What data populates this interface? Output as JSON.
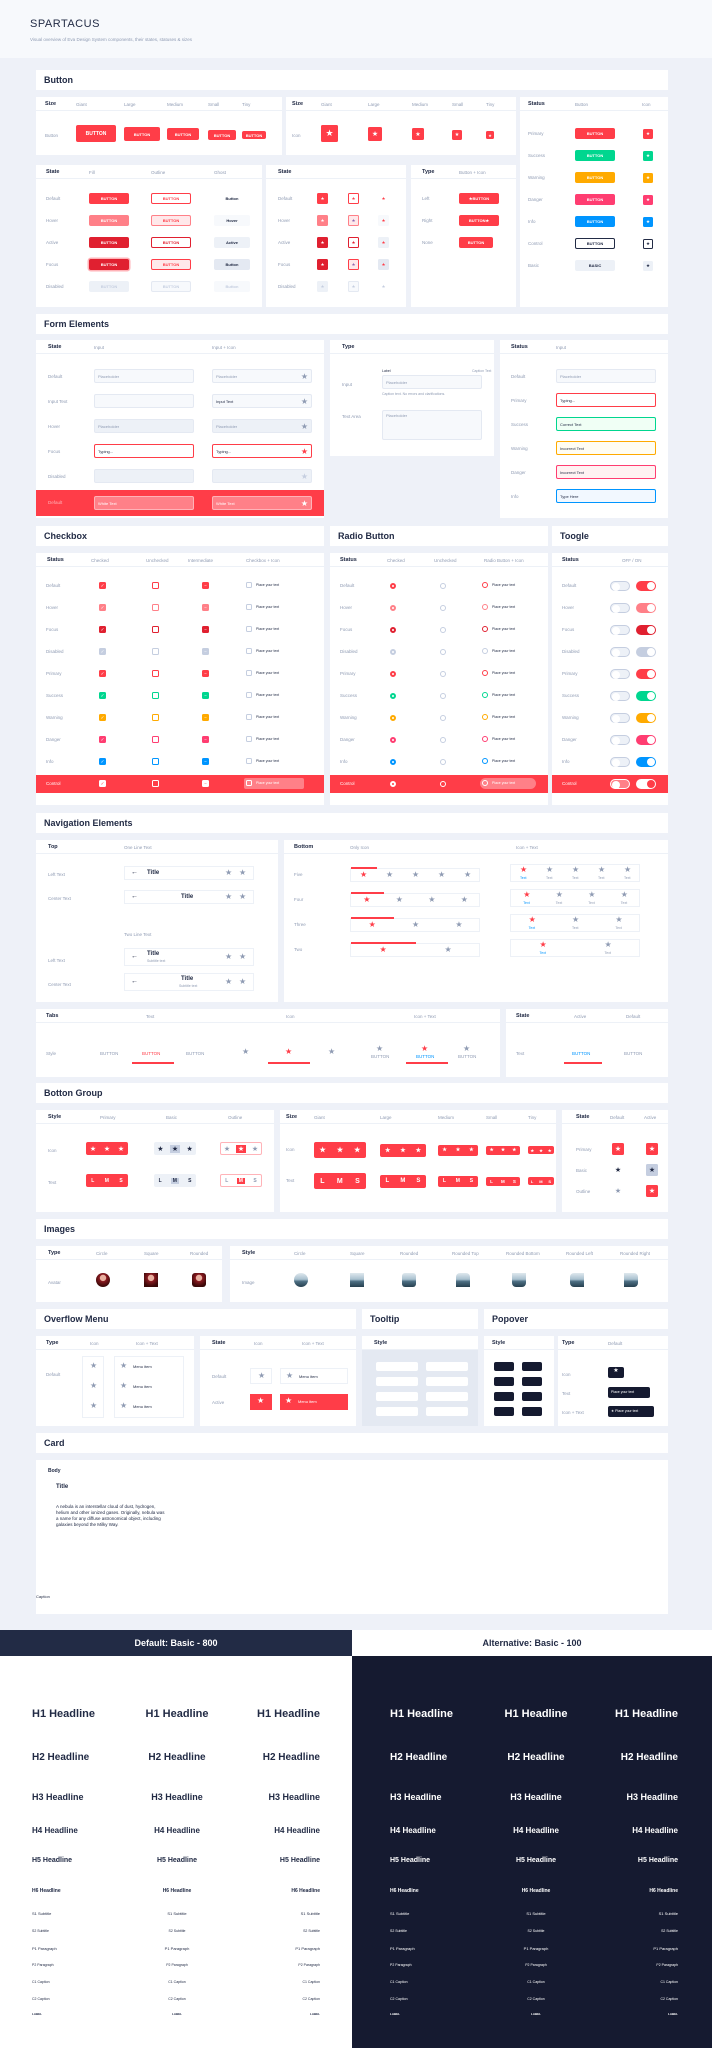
{
  "brand": {
    "title": "SPARTACUS",
    "subtitle": "Visual overview of Eva Design System components, their states, statuses & sizes"
  },
  "sections": {
    "button": "Button",
    "form": "Form Elements",
    "checkbox": "Checkbox",
    "radio": "Radio Button",
    "toggle": "Toogle",
    "nav": "Navigation Elements",
    "group": "Botton Group",
    "images": "Images",
    "overflow": "Overflow Menu",
    "tooltip": "Tooltip",
    "popover": "Popover",
    "card": "Card"
  },
  "cols": {
    "size": "Size",
    "giant": "Giant",
    "large": "Large",
    "medium": "Medium",
    "small": "Small",
    "tiny": "Tiny",
    "status": "Status",
    "button": "Button",
    "icon": "Icon",
    "state": "State",
    "fill": "Fill",
    "outline": "Outline",
    "ghost": "Ghost",
    "type": "Type",
    "button_icon": "Button + Icon",
    "input": "Input",
    "input_icon": "Input + Icon",
    "checked": "Checked",
    "unchecked": "Unchecked",
    "intermediate": "Intermediate",
    "checkbox_icon": "Checkbox + Icon",
    "radio_icon": "Radio Button + Icon",
    "off_on": "OFF / ON",
    "top": "Top",
    "bottom": "Bottom",
    "one_line": "One Line Text",
    "two_line": "Two Line Text",
    "only_icon": "Only Icon",
    "icon_text": "Icon + Text",
    "tabs": "Tabs",
    "text": "Text",
    "active": "Active",
    "default": "Default",
    "style": "Style",
    "primary": "Primary",
    "basic": "Basic",
    "circle": "Circle",
    "square": "Square",
    "rounded": "Rounded",
    "rounded_top": "Rounded Top",
    "rounded_bottom": "Rounded Bottom",
    "rounded_left": "Rounded Left",
    "rounded_right": "Rounded Right",
    "body": "Body",
    "caption": "Caption"
  },
  "rows": {
    "button": "Button",
    "icon": "Icon",
    "default": "Default",
    "hover": "Hover",
    "active": "Active",
    "focus": "Focus",
    "disabled": "Disabled",
    "left": "Left",
    "right": "Right",
    "none": "None",
    "primary": "Primary",
    "success": "Success",
    "warning": "Warning",
    "danger": "Danger",
    "info": "Info",
    "control": "Control",
    "basic": "Basic",
    "input_text": "Input Text",
    "text_area": "Text Area",
    "left_text": "Left Text",
    "center_text": "Center Text",
    "five": "Five",
    "four": "Four",
    "three": "Three",
    "two": "Two",
    "style": "Style",
    "text": "Text",
    "icon_text": "Icon + Text",
    "avatar": "Avatar",
    "image": "Image"
  },
  "labels": {
    "button": "BUTTON",
    "basic": "BASIC",
    "placeholder": "Placeholder",
    "typing": "Typing...",
    "white_text": "White Text",
    "correct": "Correct Text",
    "incorrect": "Incorrect Text",
    "type_here": "Type Here",
    "label": "Label",
    "caption_text": "Caption Text",
    "caption_long": "Caption text. No errors and clarifications.",
    "place_text": "Place your text",
    "title": "Title",
    "subtitle": "Subtitle text",
    "text": "Text",
    "menu_item": "Menu item",
    "L": "L",
    "M": "M",
    "S": "S",
    "card_title": "Title",
    "card_body": "A nebula is an interstellar cloud of dust, hydrogen, helium and other ionized gases. Originally, nebula was a name for any diffuse astronomical object, including galaxies beyond the Milky Way.",
    "card_caption": "Caption",
    "hover": "Hover",
    "active": "Active",
    "button_lc": "Button"
  },
  "typography": {
    "left_header": "Default: Basic - 800",
    "right_header": "Alternative: Basic - 100",
    "styles": [
      "H1 Headline",
      "H2 Headline",
      "H3 Headline",
      "H4 Headline",
      "H5 Headline",
      "H6 Headline",
      "S1 Subtitle",
      "S2 Subtitle",
      "P1 Paragraph",
      "P2 Paragraph",
      "C1 Caption",
      "C2 Caption",
      "LABEL"
    ]
  },
  "colors": {
    "primary": "#ff3d48",
    "success": "#00d68f",
    "warning": "#ffaa00",
    "danger": "#ff3d71",
    "info": "#0095ff",
    "basic": "#edf1f7",
    "dark": "#151a30"
  }
}
